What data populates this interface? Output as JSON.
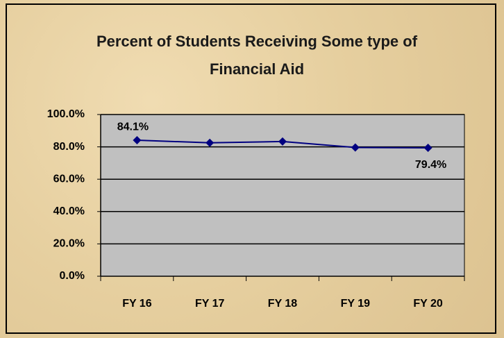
{
  "chart_data": {
    "type": "line",
    "title": "Percent of Students Receiving Some type of Financial Aid",
    "categories": [
      "FY 16",
      "FY 17",
      "FY 18",
      "FY 19",
      "FY 20"
    ],
    "series": [
      {
        "name": "Percent",
        "color": "#000080",
        "values": [
          84.1,
          82.5,
          83.3,
          79.6,
          79.4
        ],
        "value_labels": [
          "84.1%",
          null,
          null,
          null,
          "79.4%"
        ]
      }
    ],
    "ylim": [
      0,
      100
    ],
    "yticks": [
      {
        "value": 0,
        "label": "0.0%"
      },
      {
        "value": 20,
        "label": "20.0%"
      },
      {
        "value": 40,
        "label": "40.0%"
      },
      {
        "value": 60,
        "label": "60.0%"
      },
      {
        "value": 80,
        "label": "80.0%"
      },
      {
        "value": 100,
        "label": "100.0%"
      }
    ],
    "grid": true
  }
}
